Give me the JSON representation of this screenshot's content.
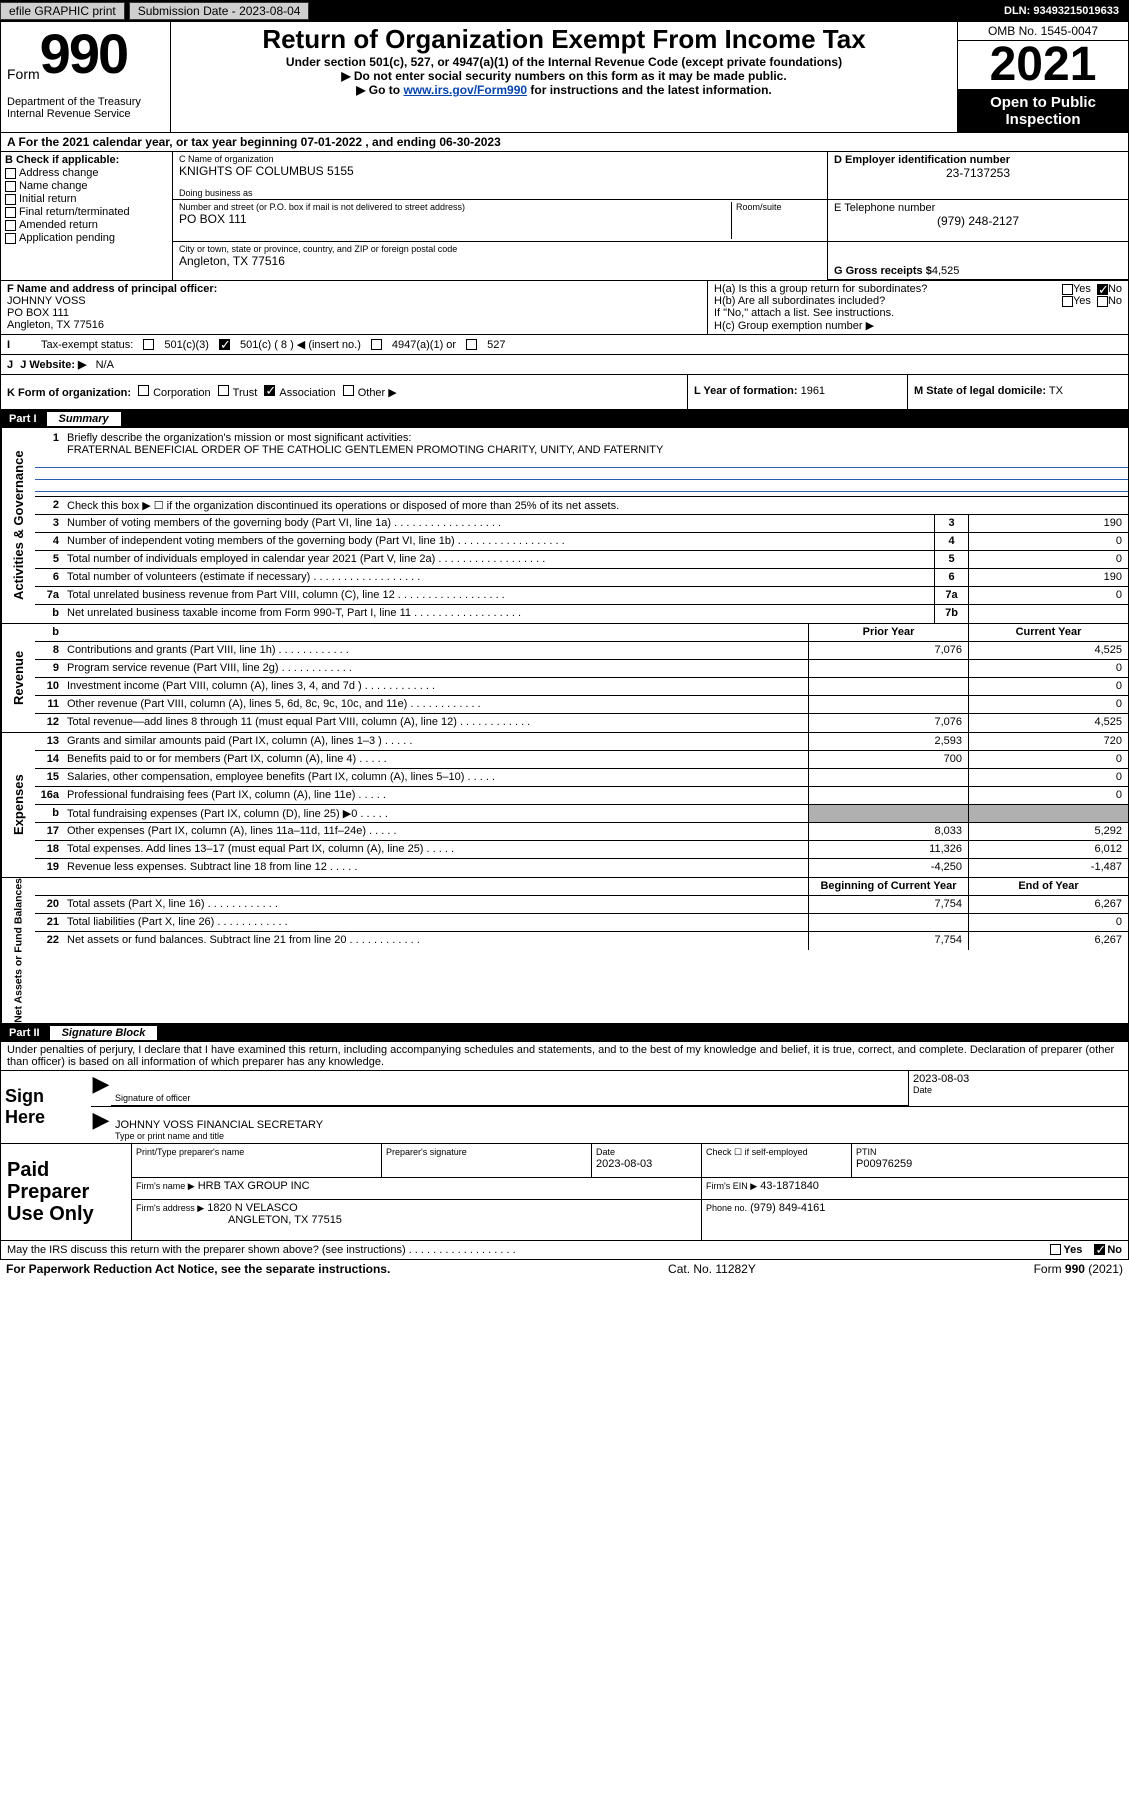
{
  "topbar": {
    "efile": "efile GRAPHIC print",
    "submission_label": "Submission Date - 2023-08-04",
    "dln": "DLN: 93493215019633"
  },
  "header": {
    "form_word": "Form",
    "form_number": "990",
    "title": "Return of Organization Exempt From Income Tax",
    "subtitle": "Under section 501(c), 527, or 4947(a)(1) of the Internal Revenue Code (except private foundations)",
    "no_ssn": "▶ Do not enter social security numbers on this form as it may be made public.",
    "goto_pre": "▶ Go to ",
    "goto_link": "www.irs.gov/Form990",
    "goto_post": " for instructions and the latest information.",
    "dept": "Department of the Treasury\nInternal Revenue Service",
    "omb": "OMB No. 1545-0047",
    "year": "2021",
    "open": "Open to Public Inspection"
  },
  "period": {
    "text": "A For the 2021 calendar year, or tax year beginning 07-01-2022    , and ending 06-30-2023"
  },
  "section_b": {
    "header": "B Check if applicable:",
    "items": [
      "Address change",
      "Name change",
      "Initial return",
      "Final return/terminated",
      "Amended return",
      "Application pending"
    ]
  },
  "section_c": {
    "name_label": "C Name of organization",
    "name": "KNIGHTS OF COLUMBUS 5155",
    "dba_label": "Doing business as",
    "dba": "",
    "street_label": "Number and street (or P.O. box if mail is not delivered to street address)",
    "room_label": "Room/suite",
    "street": "PO BOX 111",
    "city_label": "City or town, state or province, country, and ZIP or foreign postal code",
    "city": "Angleton, TX  77516"
  },
  "section_d": {
    "ein_label": "D Employer identification number",
    "ein": "23-7137253",
    "phone_label": "E Telephone number",
    "phone": "(979) 248-2127",
    "gross_label": "G Gross receipts $",
    "gross": "4,525"
  },
  "section_f": {
    "label": "F Name and address of principal officer:",
    "name": "JOHNNY VOSS",
    "line2": "PO BOX 111",
    "line3": "Angleton, TX  77516"
  },
  "section_h": {
    "a": "H(a)  Is this a group return for subordinates?",
    "b": "H(b)  Are all subordinates included?",
    "b_note": "If \"No,\" attach a list. See instructions.",
    "c": "H(c)  Group exemption number ▶",
    "yes": "Yes",
    "no": "No"
  },
  "section_i": {
    "label": "Tax-exempt status:",
    "c3": "501(c)(3)",
    "c8": "501(c) ( 8 ) ◀ (insert no.)",
    "a1": "4947(a)(1) or",
    "s527": "527"
  },
  "website_label": "J Website: ▶",
  "website": "N/A",
  "k_label": "K Form of organization:",
  "k_opts": [
    "Corporation",
    "Trust",
    "Association",
    "Other ▶"
  ],
  "l_label": "L Year of formation:",
  "l_val": "1961",
  "m_label": "M State of legal domicile:",
  "m_val": "TX",
  "part1": {
    "num": "Part I",
    "title": "Summary",
    "mission_label": "Briefly describe the organization's mission or most significant activities:",
    "mission": "FRATERNAL BENEFICIAL ORDER OF THE CATHOLIC GENTLEMEN PROMOTING CHARITY, UNITY, AND FATERNITY",
    "line2": "Check this box ▶ ☐  if the organization discontinued its operations or disposed of more than 25% of its net assets.",
    "gov_rows": [
      {
        "n": "3",
        "label": "Number of voting members of the governing body (Part VI, line 1a)",
        "box": "3",
        "val": "190"
      },
      {
        "n": "4",
        "label": "Number of independent voting members of the governing body (Part VI, line 1b)",
        "box": "4",
        "val": "0"
      },
      {
        "n": "5",
        "label": "Total number of individuals employed in calendar year 2021 (Part V, line 2a)",
        "box": "5",
        "val": "0"
      },
      {
        "n": "6",
        "label": "Total number of volunteers (estimate if necessary)",
        "box": "6",
        "val": "190"
      },
      {
        "n": "7a",
        "label": "Total unrelated business revenue from Part VIII, column (C), line 12",
        "box": "7a",
        "val": "0"
      },
      {
        "n": "b",
        "label": "Net unrelated business taxable income from Form 990-T, Part I, line 11",
        "box": "7b",
        "val": ""
      }
    ],
    "col_prior": "Prior Year",
    "col_current": "Current Year",
    "rev_rows": [
      {
        "n": "8",
        "label": "Contributions and grants (Part VIII, line 1h)",
        "prior": "7,076",
        "curr": "4,525"
      },
      {
        "n": "9",
        "label": "Program service revenue (Part VIII, line 2g)",
        "prior": "",
        "curr": "0"
      },
      {
        "n": "10",
        "label": "Investment income (Part VIII, column (A), lines 3, 4, and 7d )",
        "prior": "",
        "curr": "0"
      },
      {
        "n": "11",
        "label": "Other revenue (Part VIII, column (A), lines 5, 6d, 8c, 9c, 10c, and 11e)",
        "prior": "",
        "curr": "0"
      },
      {
        "n": "12",
        "label": "Total revenue—add lines 8 through 11 (must equal Part VIII, column (A), line 12)",
        "prior": "7,076",
        "curr": "4,525"
      }
    ],
    "exp_rows": [
      {
        "n": "13",
        "label": "Grants and similar amounts paid (Part IX, column (A), lines 1–3 )",
        "prior": "2,593",
        "curr": "720"
      },
      {
        "n": "14",
        "label": "Benefits paid to or for members (Part IX, column (A), line 4)",
        "prior": "700",
        "curr": "0"
      },
      {
        "n": "15",
        "label": "Salaries, other compensation, employee benefits (Part IX, column (A), lines 5–10)",
        "prior": "",
        "curr": "0"
      },
      {
        "n": "16a",
        "label": "Professional fundraising fees (Part IX, column (A), line 11e)",
        "prior": "",
        "curr": "0"
      },
      {
        "n": "b",
        "label": "Total fundraising expenses (Part IX, column (D), line 25) ▶0",
        "prior": "GREY",
        "curr": "GREY"
      },
      {
        "n": "17",
        "label": "Other expenses (Part IX, column (A), lines 11a–11d, 11f–24e)",
        "prior": "8,033",
        "curr": "5,292"
      },
      {
        "n": "18",
        "label": "Total expenses. Add lines 13–17 (must equal Part IX, column (A), line 25)",
        "prior": "11,326",
        "curr": "6,012"
      },
      {
        "n": "19",
        "label": "Revenue less expenses. Subtract line 18 from line 12",
        "prior": "-4,250",
        "curr": "-1,487"
      }
    ],
    "col_begin": "Beginning of Current Year",
    "col_end": "End of Year",
    "net_rows": [
      {
        "n": "20",
        "label": "Total assets (Part X, line 16)",
        "prior": "7,754",
        "curr": "6,267"
      },
      {
        "n": "21",
        "label": "Total liabilities (Part X, line 26)",
        "prior": "",
        "curr": "0"
      },
      {
        "n": "22",
        "label": "Net assets or fund balances. Subtract line 21 from line 20",
        "prior": "7,754",
        "curr": "6,267"
      }
    ]
  },
  "part2": {
    "num": "Part II",
    "title": "Signature Block",
    "penalty": "Under penalties of perjury, I declare that I have examined this return, including accompanying schedules and statements, and to the best of my knowledge and belief, it is true, correct, and complete. Declaration of preparer (other than officer) is based on all information of which preparer has any knowledge.",
    "sign_here": "Sign Here",
    "sig_officer": "Signature of officer",
    "sig_date": "2023-08-03",
    "date_label": "Date",
    "officer_name": "JOHNNY VOSS FINANCIAL SECRETARY",
    "type_name": "Type or print name and title",
    "paid": "Paid Preparer Use Only",
    "prep_name_label": "Print/Type preparer's name",
    "prep_sig_label": "Preparer's signature",
    "prep_date_label": "Date",
    "prep_date": "2023-08-03",
    "check_if": "Check ☐  if self-employed",
    "ptin_label": "PTIN",
    "ptin": "P00976259",
    "firm_name_label": "Firm's name    ▶",
    "firm_name": "HRB TAX GROUP INC",
    "firm_ein_label": "Firm's EIN ▶",
    "firm_ein": "43-1871840",
    "firm_addr_label": "Firm's address ▶",
    "firm_addr1": "1820 N VELASCO",
    "firm_addr2": "ANGLETON, TX  77515",
    "phone_label": "Phone no.",
    "phone": "(979) 849-4161",
    "discuss": "May the IRS discuss this return with the preparer shown above? (see instructions)"
  },
  "footer": {
    "left": "For Paperwork Reduction Act Notice, see the separate instructions.",
    "mid": "Cat. No. 11282Y",
    "right_a": "Form ",
    "right_b": "990",
    "right_c": " (2021)"
  },
  "side_labels": {
    "gov": "Activities & Governance",
    "rev": "Revenue",
    "exp": "Expenses",
    "net": "Net Assets or Fund Balances"
  }
}
